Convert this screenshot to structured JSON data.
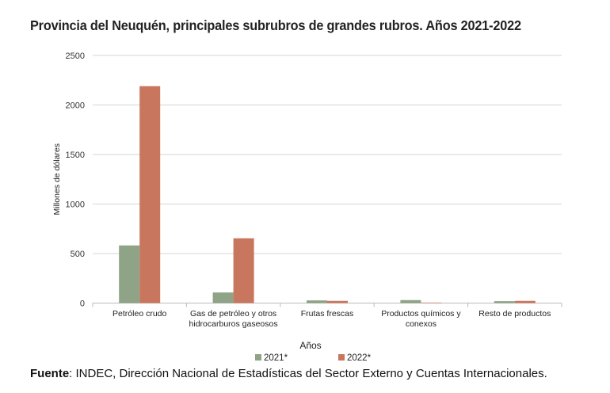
{
  "chart_data": {
    "type": "bar",
    "title": "Provincia del Neuquén, principales subrubros de grandes rubros. Años 2021-2022",
    "xlabel": "Años",
    "ylabel": "Millones de dólares",
    "ylim": [
      0,
      2500
    ],
    "yticks": [
      "0",
      "500",
      "1000",
      "1500",
      "2000",
      "2500"
    ],
    "grid": true,
    "legend": "bottom",
    "categories": [
      [
        "Petróleo crudo"
      ],
      [
        "Gas de petróleo y otros",
        "hidrocarburos gaseosos"
      ],
      [
        "Frutas frescas"
      ],
      [
        "Productos químicos y",
        "conexos"
      ],
      [
        "Resto de productos"
      ]
    ],
    "series": [
      {
        "name": "2021*",
        "color": "#8fa386",
        "values": [
          582,
          107,
          27,
          30,
          19
        ]
      },
      {
        "name": "2022*",
        "color": "#c9765e",
        "values": [
          2190,
          654,
          22,
          5,
          22
        ]
      }
    ]
  },
  "source": {
    "label": "Fuente",
    "text": ": INDEC, Dirección Nacional de Estadísticas del Sector Externo y Cuentas Internacionales."
  }
}
